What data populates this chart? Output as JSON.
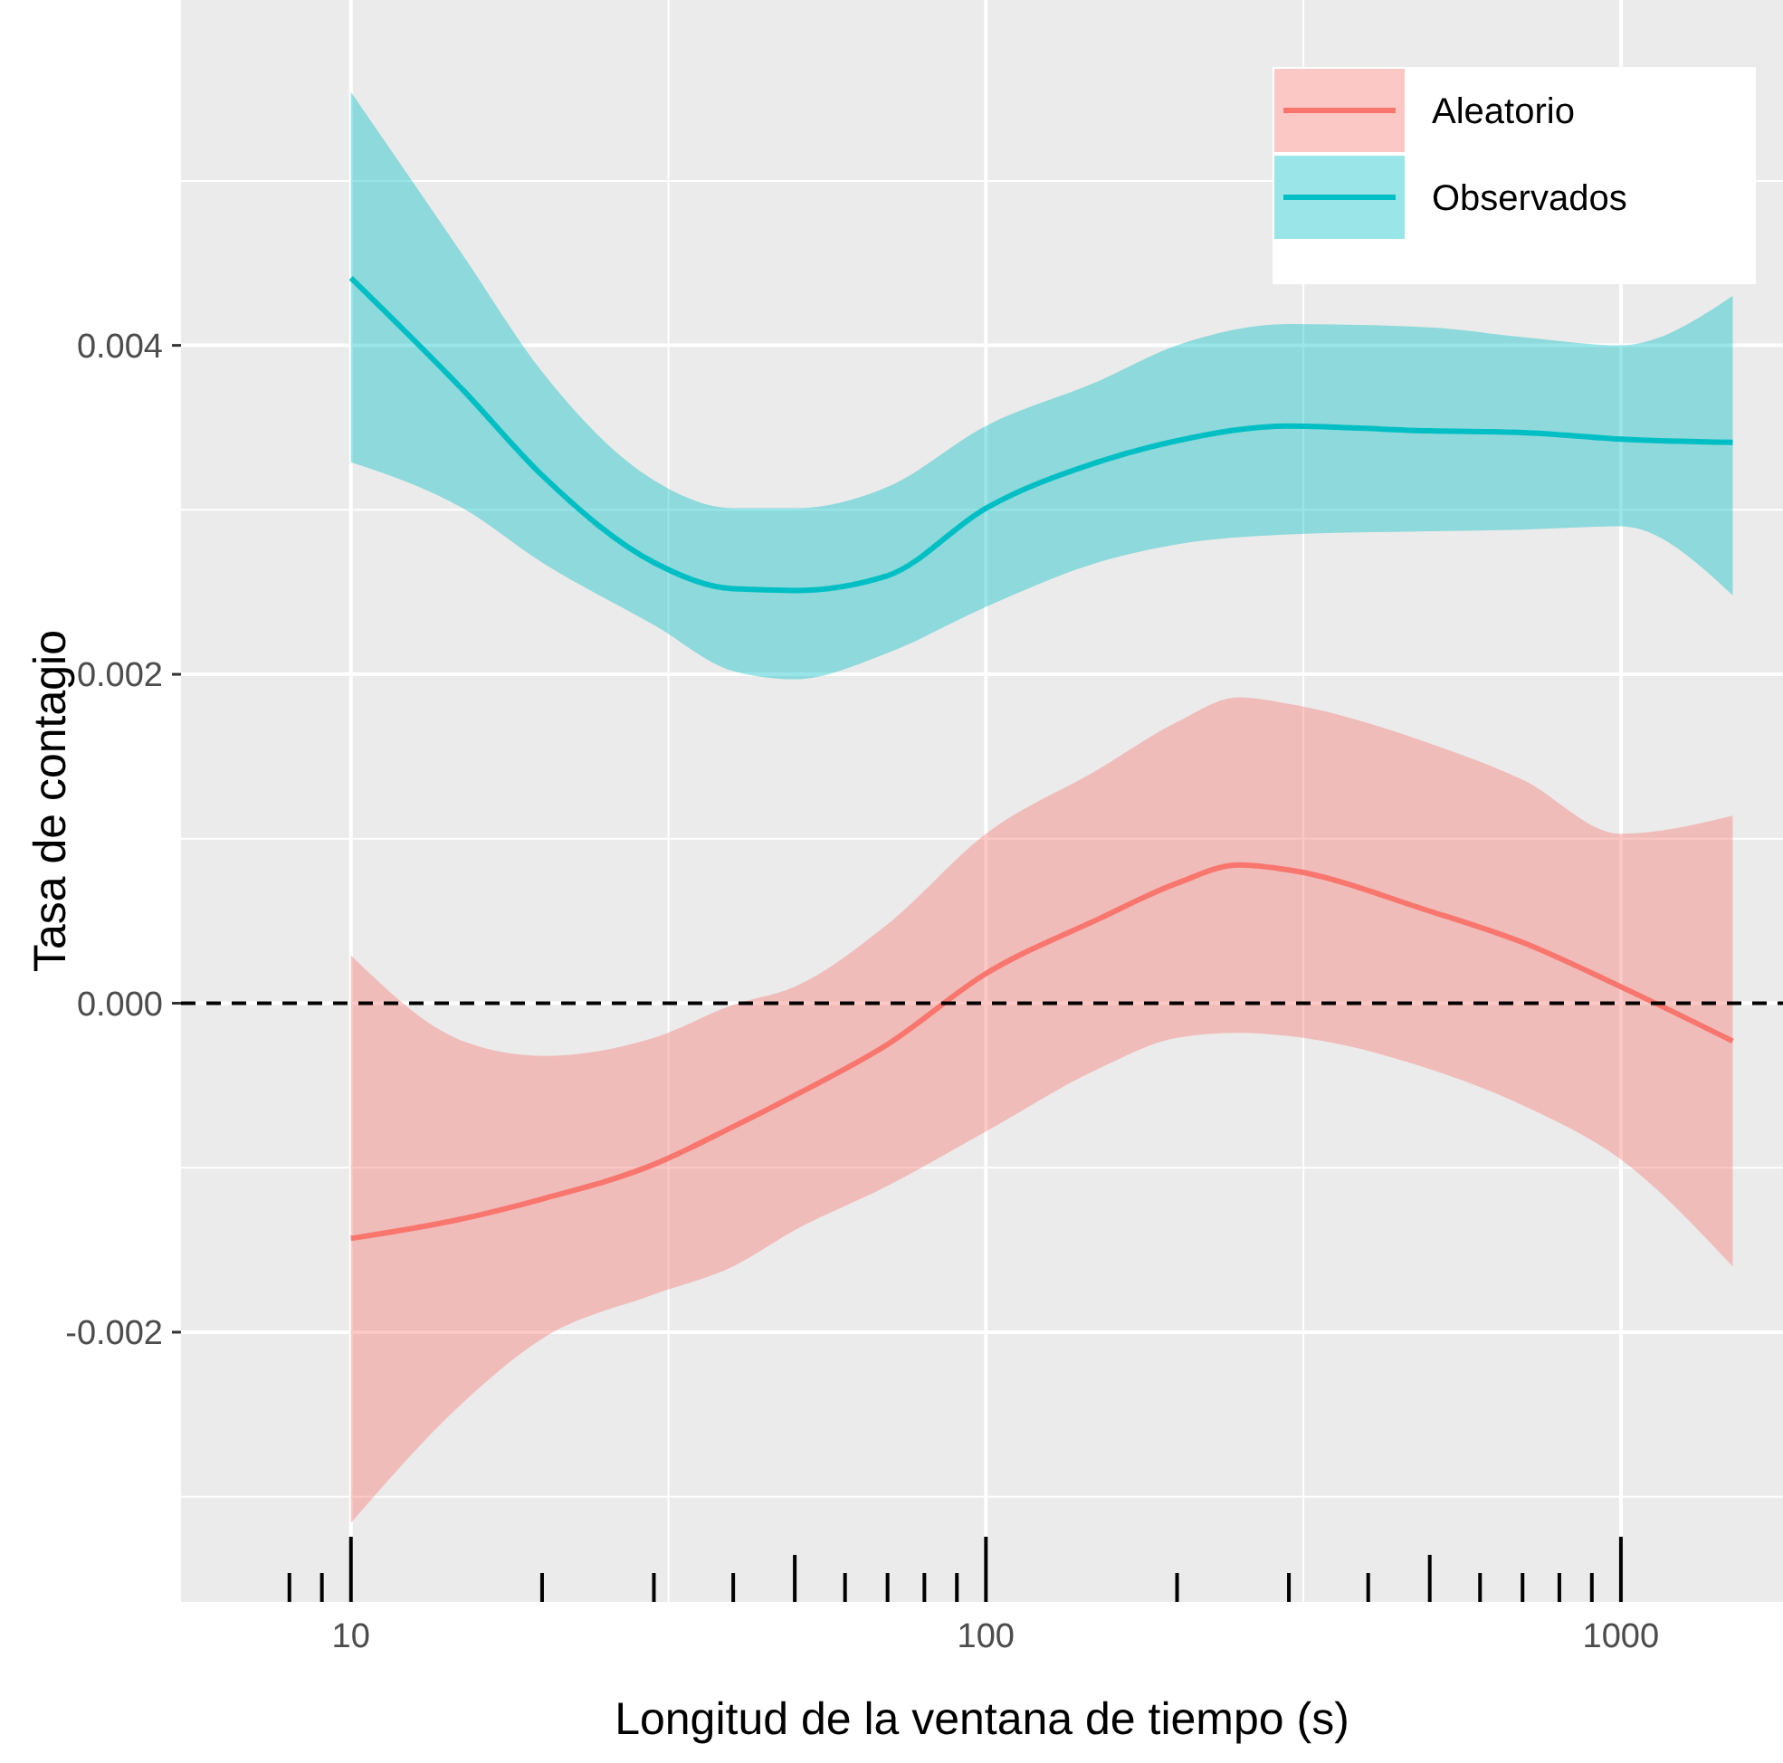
{
  "chart_data": {
    "type": "line",
    "xlabel": "Longitud de la ventana de tiempo (s)",
    "ylabel": "Tasa de contagio",
    "log": "x",
    "xlim": [
      5.4,
      1800
    ],
    "ylim": [
      -0.00364,
      0.0061
    ],
    "xticks": [
      {
        "value": 8,
        "label": null
      },
      {
        "value": 9,
        "label": null
      },
      10,
      {
        "value": 20,
        "label": null
      },
      {
        "value": 30,
        "label": null
      },
      {
        "value": 40,
        "label": null
      },
      {
        "value": 50,
        "label": null
      },
      {
        "value": 60,
        "label": null
      },
      {
        "value": 70,
        "label": null
      },
      {
        "value": 80,
        "label": null
      },
      {
        "value": 90,
        "label": null
      },
      100,
      {
        "value": 200,
        "label": null
      },
      {
        "value": 300,
        "label": null
      },
      {
        "value": 400,
        "label": null
      },
      {
        "value": 500,
        "label": null
      },
      {
        "value": 600,
        "label": null
      },
      {
        "value": 700,
        "label": null
      },
      {
        "value": 800,
        "label": null
      },
      {
        "value": 900,
        "label": null
      },
      1000
    ],
    "yticks": [
      {
        "value": -0.002,
        "label": "-0.002"
      },
      {
        "value": 0,
        "label": "0.000"
      },
      {
        "value": 0.002,
        "label": "0.002"
      },
      {
        "value": 0.004,
        "label": "0.004"
      }
    ],
    "grid": true,
    "legend": "top right",
    "ref_lines": [
      {
        "axis": "y",
        "value": 0,
        "color": "#000000",
        "line_style": "dashed"
      }
    ],
    "series": [
      {
        "name": "Aleatorio",
        "color": "#f8766d",
        "x": [
          10,
          15,
          20,
          30,
          40,
          50,
          70,
          100,
          150,
          200,
          250,
          300,
          500,
          700,
          1000,
          1500
        ],
        "values": [
          -0.00143,
          -0.00131,
          -0.00119,
          -0.00098,
          -0.00075,
          -0.00056,
          -0.00025,
          0.00018,
          0.00051,
          0.00073,
          0.00084,
          0.00081,
          0.00056,
          0.00037,
          0.0001,
          -0.00023
        ],
        "lower": [
          -0.00316,
          -0.00243,
          -0.00204,
          -0.00177,
          -0.0016,
          -0.00138,
          -0.00111,
          -0.00078,
          -0.0004,
          -0.00021,
          -0.00018,
          -0.0002,
          -0.0004,
          -0.00062,
          -0.00095,
          -0.0016
        ],
        "upper": [
          0.00029,
          -0.00023,
          -0.00032,
          -0.00021,
          -1e-05,
          0.0001,
          0.00048,
          0.00103,
          0.00142,
          0.00171,
          0.00186,
          0.00182,
          0.00158,
          0.00136,
          0.00103,
          0.00114
        ]
      },
      {
        "name": "Observados",
        "color": "#00bfc4",
        "x": [
          10,
          15,
          20,
          30,
          40,
          50,
          70,
          100,
          150,
          200,
          300,
          500,
          700,
          1000,
          1500
        ],
        "values": [
          0.00441,
          0.00373,
          0.00321,
          0.00268,
          0.00252,
          0.00251,
          0.0026,
          0.00301,
          0.00329,
          0.00342,
          0.00351,
          0.00348,
          0.00347,
          0.00343,
          0.00341
        ],
        "lower": [
          0.00329,
          0.00301,
          0.00268,
          0.0023,
          0.00202,
          0.00197,
          0.00213,
          0.00241,
          0.00268,
          0.00279,
          0.00285,
          0.00287,
          0.00288,
          0.0029,
          0.00248
        ],
        "upper": [
          0.00554,
          0.00455,
          0.00384,
          0.00318,
          0.00301,
          0.00301,
          0.00314,
          0.00351,
          0.00378,
          0.004,
          0.00413,
          0.00411,
          0.00405,
          0.004,
          0.0043
        ]
      }
    ]
  }
}
